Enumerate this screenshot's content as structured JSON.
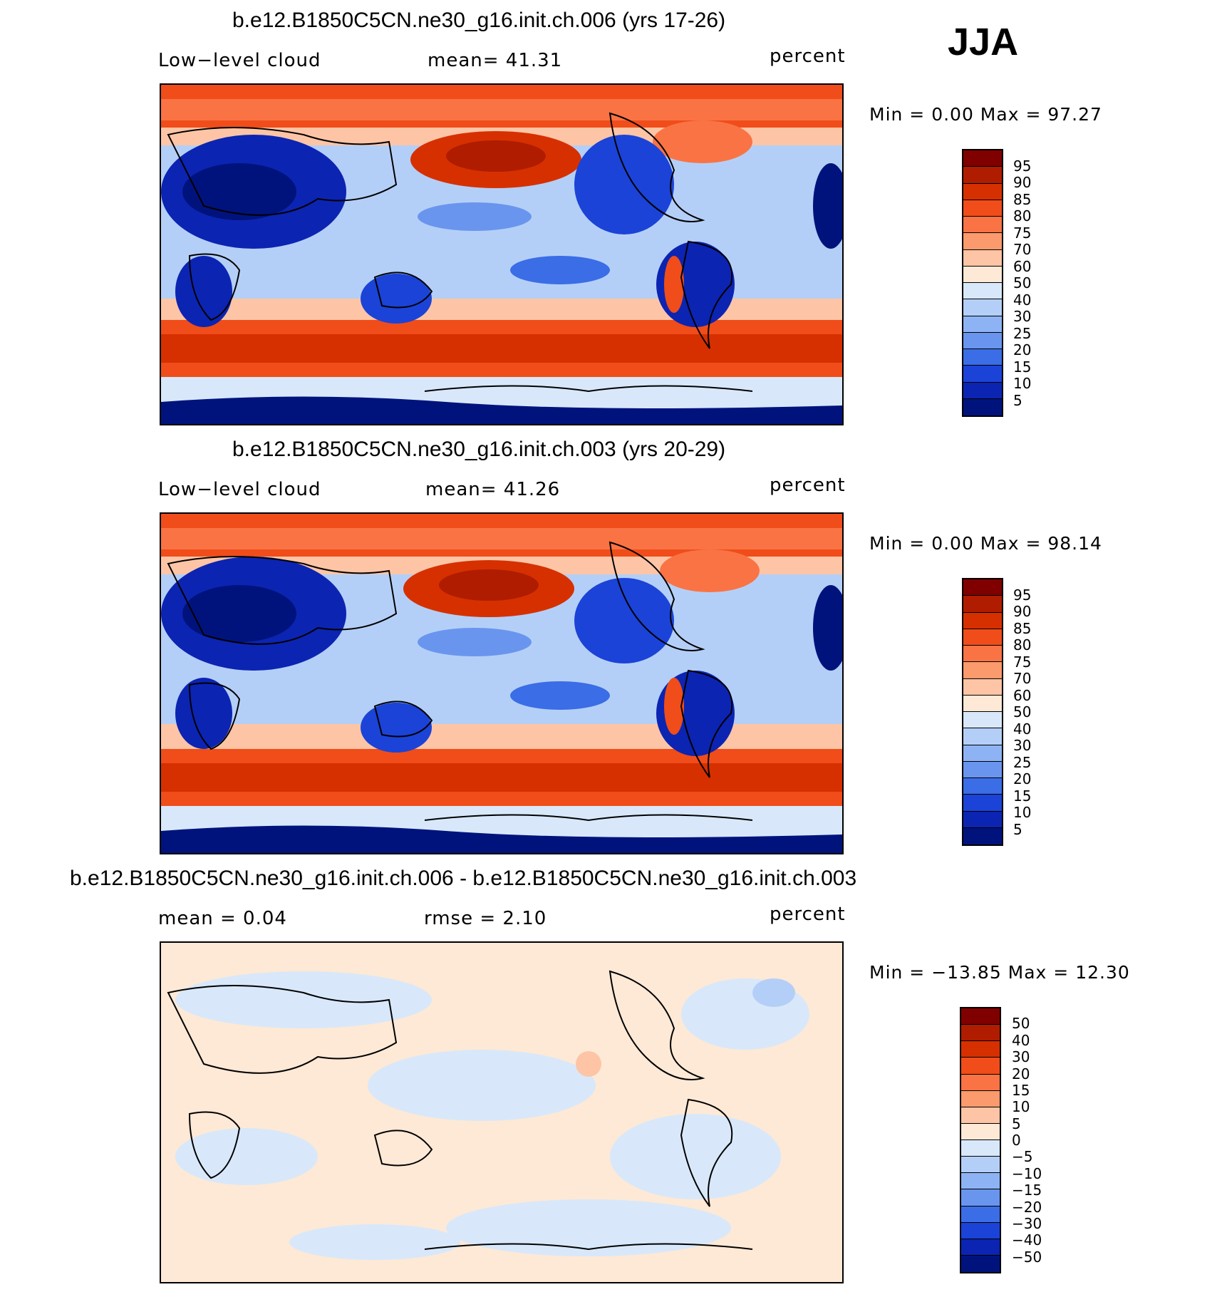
{
  "season": "JJA",
  "panels": [
    {
      "title": "b.e12.B1850C5CN.ne30_g16.init.ch.006 (yrs 17-26)",
      "left_label": "Low−level cloud",
      "center_label": "mean=   41.31",
      "units": "percent",
      "minmax": "Min =    0.00 Max =   97.27"
    },
    {
      "title": "b.e12.B1850C5CN.ne30_g16.init.ch.003 (yrs 20-29)",
      "left_label": "Low−level cloud",
      "center_label": "mean=   41.26",
      "units": "percent",
      "minmax": "Min =    0.00 Max =   98.14"
    },
    {
      "title": "b.e12.B1850C5CN.ne30_g16.init.ch.006 - b.e12.B1850C5CN.ne30_g16.init.ch.003",
      "left_label": "mean =    0.04",
      "center_label": "rmse =    2.10",
      "units": "percent",
      "minmax": "Min = −13.85 Max =   12.30"
    }
  ],
  "colorbar_abs": {
    "labels": [
      "95",
      "90",
      "85",
      "80",
      "75",
      "70",
      "60",
      "50",
      "40",
      "30",
      "25",
      "20",
      "15",
      "10",
      "5"
    ],
    "colors": [
      "#800000",
      "#b01c00",
      "#d63000",
      "#f04d1a",
      "#fa7344",
      "#fb9a6c",
      "#fdc5a6",
      "#fde9d6",
      "#d8e8fa",
      "#b4cff7",
      "#8eb3f4",
      "#6a95ee",
      "#3a6de6",
      "#1b43d7",
      "#0c24b2",
      "#00137d"
    ]
  },
  "colorbar_diff": {
    "labels": [
      "50",
      "40",
      "30",
      "20",
      "15",
      "10",
      "5",
      "0",
      "−5",
      "−10",
      "−15",
      "−20",
      "−30",
      "−40",
      "−50"
    ],
    "colors": [
      "#800000",
      "#b01c00",
      "#d63000",
      "#f04d1a",
      "#fa7344",
      "#fb9a6c",
      "#fdc5a6",
      "#fde9d6",
      "#d8e8fa",
      "#b4cff7",
      "#8eb3f4",
      "#6a95ee",
      "#3a6de6",
      "#1b43d7",
      "#0c24b2",
      "#00137d"
    ]
  }
}
